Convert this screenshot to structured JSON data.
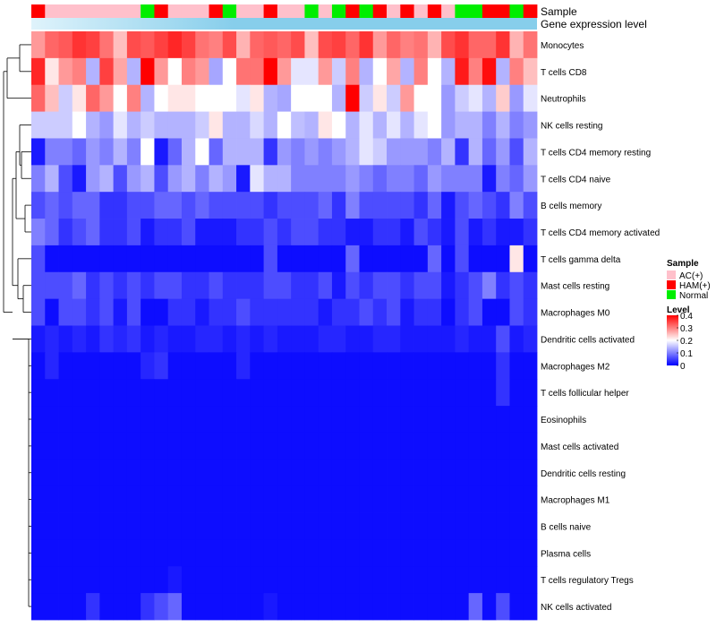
{
  "chart_data": {
    "type": "heatmap",
    "annotation_titles": [
      "Sample",
      "Gene expression level"
    ],
    "rows": [
      "Monocytes",
      "T cells CD8",
      "Neutrophils",
      "NK cells resting",
      "T cells CD4 memory resting",
      "T cells CD4 naive",
      "B cells memory",
      "T cells CD4 memory activated",
      "T cells gamma delta",
      "Mast cells resting",
      "Macrophages M0",
      "Dendritic cells activated",
      "Macrophages M2",
      "T cells follicular helper",
      "Eosinophils",
      "Mast cells activated",
      "Dendritic cells resting",
      "Macrophages M1",
      "B cells naive",
      "Plasma cells",
      "T cells regulatory  Tregs",
      "NK cells activated"
    ],
    "sample_groups": [
      "HAM(+)",
      "AC(+)",
      "AC(+)",
      "AC(+)",
      "AC(+)",
      "AC(+)",
      "AC(+)",
      "AC(+)",
      "Normal",
      "HAM(+)",
      "AC(+)",
      "AC(+)",
      "AC(+)",
      "HAM(+)",
      "Normal",
      "AC(+)",
      "AC(+)",
      "HAM(+)",
      "AC(+)",
      "AC(+)",
      "Normal",
      "AC(+)",
      "Normal",
      "HAM(+)",
      "Normal",
      "HAM(+)",
      "AC(+)",
      "HAM(+)",
      "AC(+)",
      "HAM(+)",
      "AC(+)",
      "Normal",
      "Normal",
      "HAM(+)",
      "HAM(+)",
      "Normal",
      "HAM(+)"
    ],
    "values": [
      [
        0.28,
        0.32,
        0.33,
        0.36,
        0.35,
        0.31,
        0.25,
        0.34,
        0.33,
        0.35,
        0.37,
        0.35,
        0.31,
        0.3,
        0.34,
        0.26,
        0.32,
        0.33,
        0.32,
        0.34,
        0.25,
        0.34,
        0.35,
        0.32,
        0.36,
        0.28,
        0.32,
        0.3,
        0.31,
        0.26,
        0.34,
        0.36,
        0.32,
        0.32,
        0.36,
        0.26,
        0.31
      ],
      [
        0.37,
        0.22,
        0.28,
        0.3,
        0.14,
        0.35,
        0.27,
        0.14,
        0.4,
        0.28,
        0.2,
        0.3,
        0.28,
        0.13,
        0.2,
        0.31,
        0.31,
        0.4,
        0.28,
        0.18,
        0.18,
        0.28,
        0.16,
        0.3,
        0.14,
        0.2,
        0.27,
        0.14,
        0.3,
        0.2,
        0.14,
        0.38,
        0.3,
        0.39,
        0.14,
        0.3,
        0.25
      ],
      [
        0.32,
        0.25,
        0.16,
        0.22,
        0.32,
        0.28,
        0.2,
        0.3,
        0.14,
        0.2,
        0.22,
        0.22,
        0.2,
        0.2,
        0.2,
        0.18,
        0.22,
        0.14,
        0.13,
        0.2,
        0.2,
        0.2,
        0.14,
        0.41,
        0.16,
        0.22,
        0.16,
        0.28,
        0.2,
        0.2,
        0.12,
        0.16,
        0.18,
        0.14,
        0.24,
        0.12,
        0.18
      ],
      [
        0.16,
        0.16,
        0.16,
        0.2,
        0.14,
        0.12,
        0.18,
        0.14,
        0.16,
        0.14,
        0.14,
        0.14,
        0.16,
        0.22,
        0.14,
        0.14,
        0.17,
        0.14,
        0.2,
        0.15,
        0.14,
        0.22,
        0.2,
        0.14,
        0.18,
        0.14,
        0.18,
        0.14,
        0.18,
        0.2,
        0.12,
        0.14,
        0.14,
        0.1,
        0.14,
        0.1,
        0.12
      ],
      [
        0.02,
        0.1,
        0.1,
        0.08,
        0.12,
        0.1,
        0.14,
        0.1,
        0.2,
        0.02,
        0.08,
        0.14,
        0.2,
        0.08,
        0.14,
        0.14,
        0.14,
        0.04,
        0.12,
        0.1,
        0.12,
        0.1,
        0.12,
        0.14,
        0.18,
        0.16,
        0.12,
        0.12,
        0.12,
        0.1,
        0.14,
        0.04,
        0.14,
        0.08,
        0.12,
        0.06,
        0.14
      ],
      [
        0.1,
        0.14,
        0.06,
        0.02,
        0.12,
        0.14,
        0.06,
        0.12,
        0.14,
        0.06,
        0.12,
        0.14,
        0.1,
        0.14,
        0.12,
        0.02,
        0.18,
        0.14,
        0.14,
        0.1,
        0.1,
        0.1,
        0.1,
        0.12,
        0.1,
        0.08,
        0.1,
        0.1,
        0.08,
        0.12,
        0.1,
        0.1,
        0.1,
        0.02,
        0.1,
        0.08,
        0.12
      ],
      [
        0.06,
        0.08,
        0.06,
        0.08,
        0.08,
        0.04,
        0.04,
        0.06,
        0.06,
        0.08,
        0.08,
        0.06,
        0.08,
        0.06,
        0.06,
        0.06,
        0.06,
        0.04,
        0.06,
        0.06,
        0.06,
        0.08,
        0.04,
        0.1,
        0.06,
        0.06,
        0.06,
        0.06,
        0.04,
        0.08,
        0.02,
        0.06,
        0.08,
        0.06,
        0.04,
        0.1,
        0.06
      ],
      [
        0.1,
        0.08,
        0.04,
        0.06,
        0.08,
        0.04,
        0.04,
        0.06,
        0.02,
        0.04,
        0.04,
        0.06,
        0.02,
        0.02,
        0.02,
        0.04,
        0.04,
        0.06,
        0.04,
        0.06,
        0.06,
        0.04,
        0.04,
        0.02,
        0.02,
        0.04,
        0.04,
        0.02,
        0.06,
        0.04,
        0.02,
        0.06,
        0.02,
        0.04,
        0.02,
        0.02,
        0.04
      ],
      [
        0.06,
        0.01,
        0.01,
        0.01,
        0.01,
        0.01,
        0.01,
        0.01,
        0.01,
        0.01,
        0.01,
        0.01,
        0.01,
        0.01,
        0.01,
        0.01,
        0.01,
        0.06,
        0.01,
        0.01,
        0.01,
        0.01,
        0.01,
        0.08,
        0.01,
        0.01,
        0.01,
        0.01,
        0.01,
        0.08,
        0.01,
        0.06,
        0.01,
        0.01,
        0.01,
        0.22,
        0.01
      ],
      [
        0.06,
        0.06,
        0.06,
        0.08,
        0.04,
        0.06,
        0.04,
        0.06,
        0.04,
        0.06,
        0.06,
        0.04,
        0.04,
        0.06,
        0.04,
        0.04,
        0.04,
        0.06,
        0.06,
        0.04,
        0.04,
        0.06,
        0.02,
        0.06,
        0.04,
        0.06,
        0.06,
        0.04,
        0.06,
        0.06,
        0.02,
        0.04,
        0.06,
        0.1,
        0.04,
        0.06,
        0.04
      ],
      [
        0.06,
        0.01,
        0.06,
        0.06,
        0.04,
        0.06,
        0.02,
        0.06,
        0.01,
        0.01,
        0.04,
        0.04,
        0.02,
        0.04,
        0.04,
        0.06,
        0.04,
        0.04,
        0.04,
        0.04,
        0.04,
        0.02,
        0.04,
        0.04,
        0.06,
        0.04,
        0.06,
        0.02,
        0.04,
        0.04,
        0.01,
        0.04,
        0.06,
        0.01,
        0.01,
        0.06,
        0.04
      ],
      [
        0.02,
        0.03,
        0.02,
        0.03,
        0.02,
        0.04,
        0.03,
        0.04,
        0.02,
        0.03,
        0.02,
        0.02,
        0.03,
        0.03,
        0.02,
        0.03,
        0.02,
        0.03,
        0.02,
        0.02,
        0.02,
        0.03,
        0.03,
        0.02,
        0.02,
        0.03,
        0.03,
        0.02,
        0.02,
        0.02,
        0.02,
        0.03,
        0.02,
        0.02,
        0.06,
        0.02,
        0.03
      ],
      [
        0.01,
        0.03,
        0.01,
        0.01,
        0.01,
        0.01,
        0.01,
        0.01,
        0.03,
        0.04,
        0.01,
        0.01,
        0.01,
        0.01,
        0.01,
        0.03,
        0.01,
        0.01,
        0.01,
        0.01,
        0.01,
        0.01,
        0.01,
        0.01,
        0.01,
        0.01,
        0.01,
        0.01,
        0.01,
        0.01,
        0.01,
        0.01,
        0.01,
        0.01,
        0.04,
        0.01,
        0.01
      ],
      [
        0.01,
        0.01,
        0.01,
        0.01,
        0.01,
        0.01,
        0.01,
        0.01,
        0.01,
        0.01,
        0.01,
        0.01,
        0.01,
        0.01,
        0.01,
        0.01,
        0.01,
        0.01,
        0.01,
        0.01,
        0.01,
        0.01,
        0.01,
        0.01,
        0.01,
        0.01,
        0.01,
        0.01,
        0.01,
        0.01,
        0.01,
        0.01,
        0.01,
        0.01,
        0.04,
        0.01,
        0.01
      ],
      [
        0.01,
        0.01,
        0.01,
        0.01,
        0.01,
        0.01,
        0.01,
        0.01,
        0.01,
        0.01,
        0.01,
        0.01,
        0.01,
        0.01,
        0.01,
        0.01,
        0.01,
        0.01,
        0.01,
        0.01,
        0.01,
        0.01,
        0.01,
        0.01,
        0.01,
        0.01,
        0.01,
        0.01,
        0.01,
        0.01,
        0.01,
        0.01,
        0.01,
        0.01,
        0.01,
        0.01,
        0.01
      ],
      [
        0.01,
        0.01,
        0.01,
        0.01,
        0.01,
        0.01,
        0.01,
        0.01,
        0.01,
        0.01,
        0.01,
        0.01,
        0.01,
        0.01,
        0.01,
        0.01,
        0.01,
        0.01,
        0.01,
        0.01,
        0.01,
        0.01,
        0.01,
        0.01,
        0.01,
        0.01,
        0.01,
        0.01,
        0.01,
        0.01,
        0.01,
        0.01,
        0.01,
        0.01,
        0.01,
        0.01,
        0.01
      ],
      [
        0.01,
        0.01,
        0.01,
        0.01,
        0.01,
        0.01,
        0.01,
        0.01,
        0.01,
        0.01,
        0.01,
        0.01,
        0.01,
        0.01,
        0.01,
        0.01,
        0.01,
        0.01,
        0.01,
        0.01,
        0.01,
        0.01,
        0.01,
        0.01,
        0.01,
        0.01,
        0.01,
        0.01,
        0.01,
        0.01,
        0.01,
        0.01,
        0.01,
        0.01,
        0.01,
        0.01,
        0.01
      ],
      [
        0.01,
        0.01,
        0.01,
        0.01,
        0.01,
        0.01,
        0.01,
        0.01,
        0.01,
        0.01,
        0.01,
        0.01,
        0.01,
        0.01,
        0.01,
        0.01,
        0.01,
        0.01,
        0.01,
        0.01,
        0.01,
        0.01,
        0.01,
        0.01,
        0.01,
        0.01,
        0.01,
        0.01,
        0.01,
        0.01,
        0.01,
        0.01,
        0.01,
        0.01,
        0.01,
        0.01,
        0.01
      ],
      [
        0.01,
        0.01,
        0.01,
        0.01,
        0.01,
        0.01,
        0.01,
        0.01,
        0.01,
        0.01,
        0.01,
        0.01,
        0.01,
        0.01,
        0.01,
        0.01,
        0.01,
        0.01,
        0.01,
        0.01,
        0.01,
        0.01,
        0.01,
        0.01,
        0.01,
        0.01,
        0.01,
        0.01,
        0.01,
        0.01,
        0.01,
        0.01,
        0.01,
        0.01,
        0.01,
        0.01,
        0.01
      ],
      [
        0.01,
        0.01,
        0.01,
        0.01,
        0.01,
        0.01,
        0.01,
        0.01,
        0.01,
        0.01,
        0.01,
        0.01,
        0.01,
        0.01,
        0.01,
        0.01,
        0.01,
        0.01,
        0.01,
        0.01,
        0.01,
        0.01,
        0.01,
        0.01,
        0.01,
        0.01,
        0.01,
        0.01,
        0.01,
        0.01,
        0.01,
        0.01,
        0.01,
        0.01,
        0.01,
        0.01,
        0.01
      ],
      [
        0.01,
        0.01,
        0.01,
        0.01,
        0.01,
        0.01,
        0.01,
        0.01,
        0.01,
        0.01,
        0.02,
        0.01,
        0.01,
        0.01,
        0.01,
        0.01,
        0.01,
        0.01,
        0.01,
        0.01,
        0.01,
        0.01,
        0.01,
        0.01,
        0.01,
        0.01,
        0.01,
        0.01,
        0.01,
        0.01,
        0.01,
        0.01,
        0.01,
        0.01,
        0.01,
        0.01,
        0.01
      ],
      [
        0.01,
        0.01,
        0.01,
        0.01,
        0.04,
        0.01,
        0.01,
        0.01,
        0.04,
        0.06,
        0.08,
        0.01,
        0.01,
        0.01,
        0.01,
        0.01,
        0.01,
        0.02,
        0.01,
        0.01,
        0.01,
        0.01,
        0.01,
        0.01,
        0.01,
        0.01,
        0.01,
        0.01,
        0.01,
        0.01,
        0.01,
        0.01,
        0.08,
        0.01,
        0.06,
        0.01,
        0.01
      ]
    ],
    "color_scale": {
      "min": 0,
      "mid": 0.2,
      "max": 0.4,
      "low_color": "#0000ff",
      "mid_color": "#ffffff",
      "high_color": "#ff0000"
    },
    "legend": {
      "sample_title": "Sample",
      "sample_entries": [
        {
          "label": "AC(+)",
          "color": "#ffc0cb"
        },
        {
          "label": "HAM(+)",
          "color": "#ff0000"
        },
        {
          "label": "Normal",
          "color": "#00ee00"
        }
      ],
      "level_title": "Level",
      "level_ticks": [
        "0.4",
        "0.3",
        "0.2",
        "0.1",
        "0"
      ],
      "level_tick_values": [
        0.4,
        0.3,
        0.2,
        0.1,
        0
      ]
    },
    "gene_expression_color": "#87ceeb",
    "gene_expression_stripe_low": "#dff3fb"
  }
}
